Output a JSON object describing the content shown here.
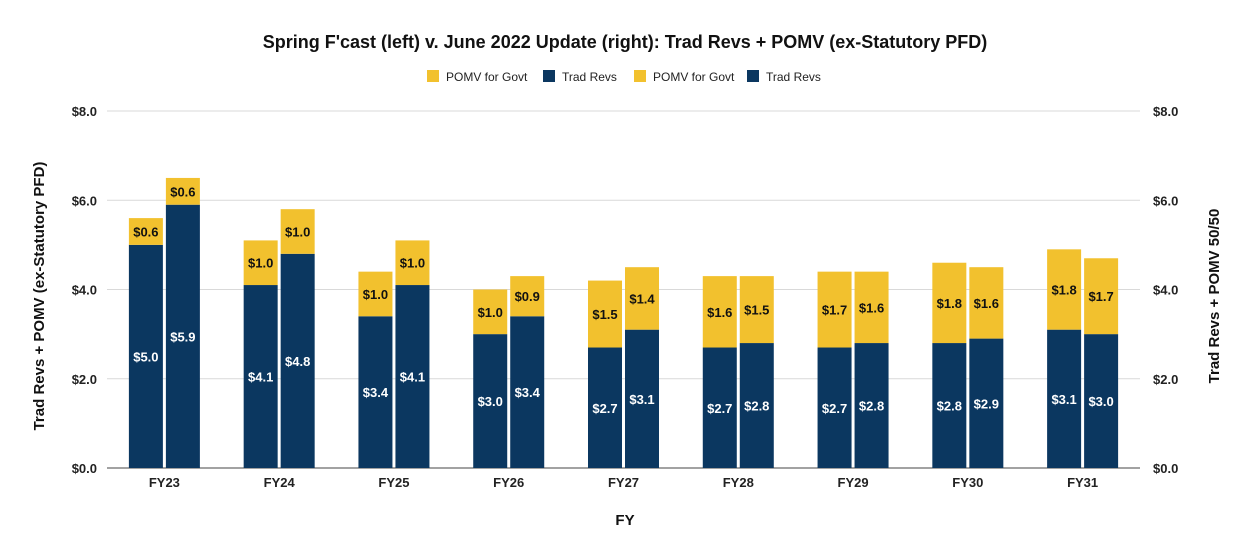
{
  "chart_data": {
    "type": "bar",
    "stacked": true,
    "grouped": true,
    "title": "Spring F'cast (left) v. June 2022 Update (right): Trad Revs + POMV (ex-Statutory PFD)",
    "xlabel": "FY",
    "ylabel_left": "Trad Revs + POMV (ex-Statutory PFD)",
    "ylabel_right": "Trad Revs + POMV 50/50",
    "ylim": [
      0,
      8
    ],
    "yticks": [
      "$0.0",
      "$2.0",
      "$4.0",
      "$6.0",
      "$8.0"
    ],
    "grid": true,
    "legend_position": "top",
    "categories": [
      "FY23",
      "FY24",
      "FY25",
      "FY26",
      "FY27",
      "FY28",
      "FY29",
      "FY30",
      "FY31"
    ],
    "colors": {
      "pomv": "#F2C12E",
      "trad": "#0B3760"
    },
    "legend": [
      "POMV for Govt",
      "Trad Revs",
      "POMV for Govt",
      "Trad Revs"
    ],
    "series": [
      {
        "name": "Trad Revs",
        "group": "spring",
        "color": "#0B3760",
        "values": [
          5.0,
          4.1,
          3.4,
          3.0,
          2.7,
          2.7,
          2.7,
          2.8,
          3.1
        ],
        "labels": [
          "$5.0",
          "$4.1",
          "$3.4",
          "$3.0",
          "$2.7",
          "$2.7",
          "$2.7",
          "$2.8",
          "$3.1"
        ]
      },
      {
        "name": "POMV for Govt",
        "group": "spring",
        "color": "#F2C12E",
        "values": [
          0.6,
          1.0,
          1.0,
          1.0,
          1.5,
          1.6,
          1.7,
          1.8,
          1.8
        ],
        "labels": [
          "$0.6",
          "$1.0",
          "$1.0",
          "$1.0",
          "$1.5",
          "$1.6",
          "$1.7",
          "$1.8",
          "$1.8"
        ]
      },
      {
        "name": "Trad Revs",
        "group": "june",
        "color": "#0B3760",
        "values": [
          5.9,
          4.8,
          4.1,
          3.4,
          3.1,
          2.8,
          2.8,
          2.9,
          3.0
        ],
        "labels": [
          "$5.9",
          "$4.8",
          "$4.1",
          "$3.4",
          "$3.1",
          "$2.8",
          "$2.8",
          "$2.9",
          "$3.0"
        ]
      },
      {
        "name": "POMV for Govt",
        "group": "june",
        "color": "#F2C12E",
        "values": [
          0.6,
          1.0,
          1.0,
          0.9,
          1.4,
          1.5,
          1.6,
          1.6,
          1.7
        ],
        "labels": [
          "$0.6",
          "$1.0",
          "$1.0",
          "$0.9",
          "$1.4",
          "$1.5",
          "$1.6",
          "$1.6",
          "$1.7"
        ]
      }
    ]
  }
}
